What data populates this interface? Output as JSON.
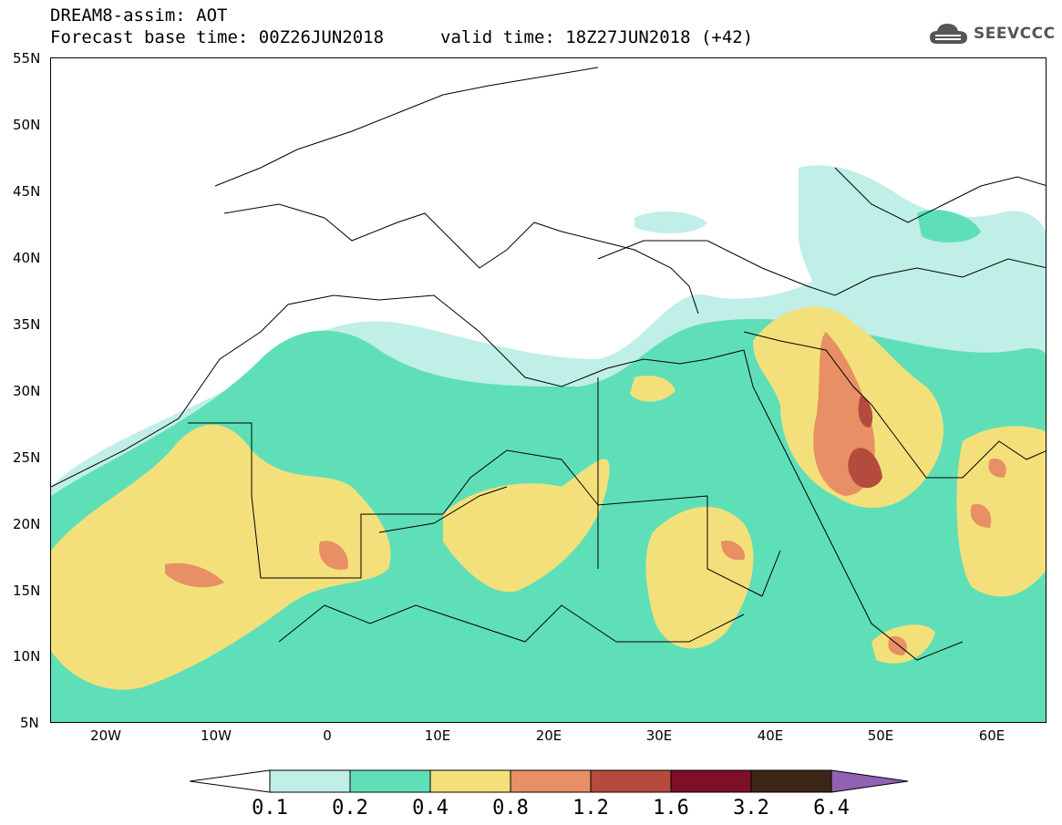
{
  "header": {
    "line1": "DREAM8-assim: AOT",
    "line2": "Forecast base time: 00Z26JUN2018",
    "valid": "valid time: 18Z27JUN2018 (+42)"
  },
  "logo": {
    "text": "SEEVCCC",
    "icon": "cloud-icon"
  },
  "map": {
    "lat_labels": [
      "55N",
      "50N",
      "45N",
      "40N",
      "35N",
      "30N",
      "25N",
      "20N",
      "15N",
      "10N",
      "5N"
    ],
    "lon_labels": [
      "20W",
      "10W",
      "0",
      "10E",
      "20E",
      "30E",
      "40E",
      "50E",
      "60E"
    ],
    "lon_range": [
      -25,
      65
    ],
    "lat_range": [
      5,
      55
    ]
  },
  "colorbar": {
    "labels": [
      "0.1",
      "0.2",
      "0.4",
      "0.8",
      "1.2",
      "1.6",
      "3.2",
      "6.4"
    ],
    "colors": [
      "#ffffff",
      "#bfefe6",
      "#5fdfb8",
      "#f4e07a",
      "#e88f65",
      "#b54b3c",
      "#7d0f28",
      "#3d2518",
      "#8f62b3"
    ]
  },
  "legend_colors": {
    "lightblue": "#bfefe6",
    "green": "#5fdfb8",
    "yellow": "#f4e07a",
    "orange": "#e88f65",
    "red": "#b54b3c",
    "darkred": "#7d0f28"
  }
}
